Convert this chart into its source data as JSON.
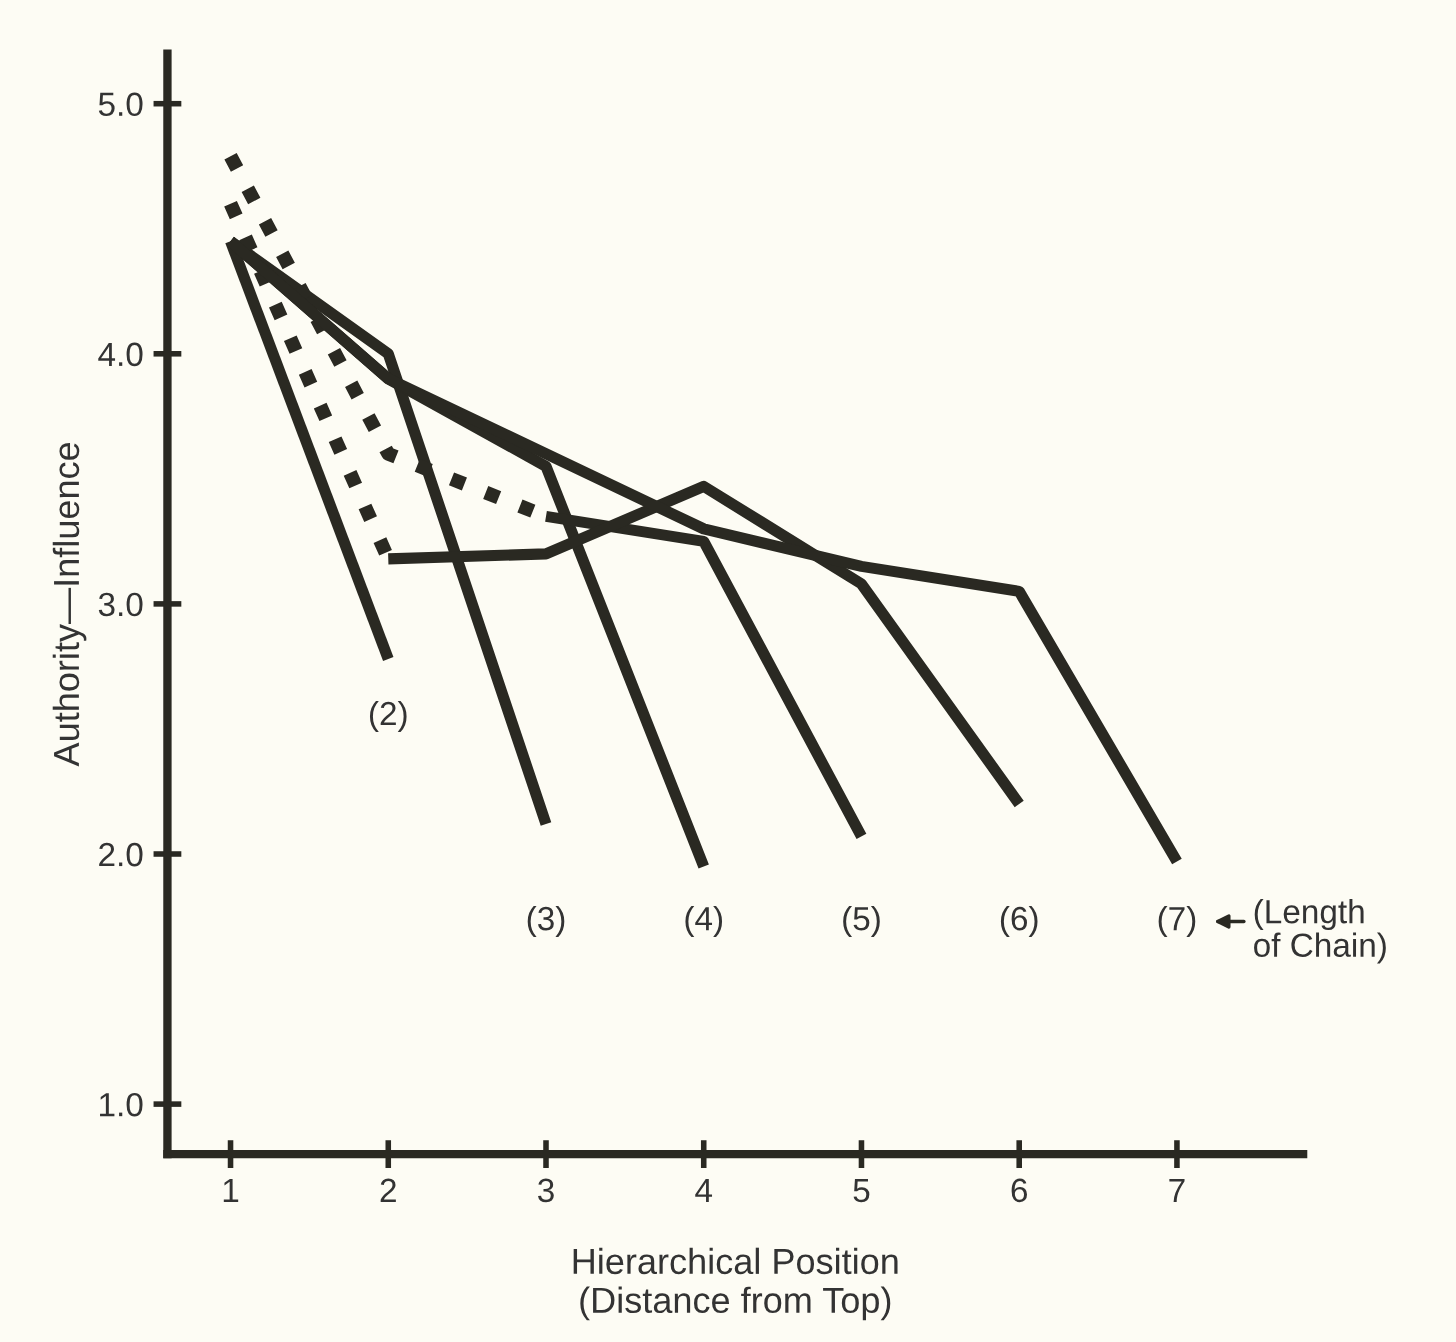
{
  "chart_data": {
    "type": "line",
    "xlabel": "Hierarchical Position\n(Distance from Top)",
    "ylabel": "Authority—Influence",
    "xlim": [
      0.6,
      7.8
    ],
    "ylim": [
      0.8,
      5.2
    ],
    "xticks": [
      1,
      2,
      3,
      4,
      5,
      6,
      7
    ],
    "yticks": [
      {
        "value": 1,
        "label": "1.0"
      },
      {
        "value": 2,
        "label": "2.0"
      },
      {
        "value": 3,
        "label": "3.0"
      },
      {
        "value": 4,
        "label": "4.0"
      },
      {
        "value": 5,
        "label": "5.0"
      }
    ],
    "grid": false,
    "legend": false,
    "marker": "none",
    "series": [
      {
        "color": "#2a2922",
        "line_style": "solid",
        "x": [
          1,
          2
        ],
        "values": [
          4.45,
          2.78
        ]
      },
      {
        "color": "#2a2922",
        "line_style": "solid",
        "x": [
          1,
          2,
          3
        ],
        "values": [
          4.45,
          4.0,
          2.12
        ]
      },
      {
        "color": "#2a2922",
        "line_style": "solid",
        "x": [
          1,
          2,
          3,
          4
        ],
        "values": [
          4.45,
          3.9,
          3.55,
          1.95
        ]
      },
      {
        "color": "#2a2922",
        "line_style": "dotted",
        "x": [
          1,
          2,
          3
        ],
        "values": [
          4.79,
          3.6,
          3.35
        ]
      },
      {
        "color": "#2a2922",
        "line_style": "solid",
        "x": [
          3,
          4,
          5
        ],
        "values": [
          3.35,
          3.25,
          2.07
        ]
      },
      {
        "color": "#2a2922",
        "line_style": "dotted",
        "x": [
          1,
          2
        ],
        "values": [
          4.6,
          3.18
        ]
      },
      {
        "color": "#2a2922",
        "line_style": "solid",
        "x": [
          2,
          3,
          4,
          5,
          6
        ],
        "values": [
          3.18,
          3.2,
          3.47,
          3.08,
          2.2
        ]
      },
      {
        "color": "#2a2922",
        "line_style": "solid",
        "x": [
          1,
          2,
          3,
          4,
          5,
          6,
          7
        ],
        "values": [
          4.45,
          3.9,
          3.6,
          3.3,
          3.15,
          3.05,
          1.97
        ]
      }
    ],
    "annotations": [
      "(2)",
      "(3)",
      "(4)",
      "(5)",
      "(6)",
      "(7)",
      "(Length\nof Chain)"
    ]
  }
}
